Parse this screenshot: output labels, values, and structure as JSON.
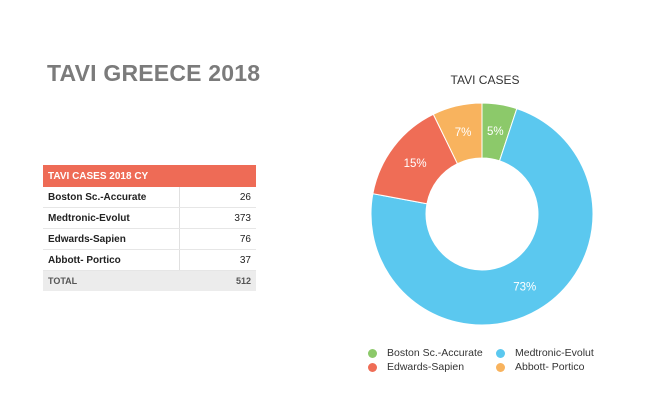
{
  "page": {
    "title": "TAVI GREECE 2018"
  },
  "table": {
    "header": "TAVI CASES 2018 CY",
    "rows": [
      {
        "label": "Boston Sc.-Accurate",
        "value": "26"
      },
      {
        "label": "Medtronic-Evolut",
        "value": "373"
      },
      {
        "label": "Edwards-Sapien",
        "value": "76"
      },
      {
        "label": "Abbott- Portico",
        "value": "37"
      }
    ],
    "total": {
      "label": "TOTAL",
      "value": "512"
    }
  },
  "chart_data": {
    "type": "pie",
    "title": "TAVI CASES",
    "categories": [
      "Boston Sc.-Accurate",
      "Medtronic-Evolut",
      "Edwards-Sapien",
      "Abbott- Portico"
    ],
    "values": [
      26,
      373,
      76,
      37
    ],
    "data_labels": [
      "5%",
      "73%",
      "15%",
      "7%"
    ],
    "colors": [
      "#8cc96a",
      "#5bc8ef",
      "#ef6d56",
      "#f8b35e"
    ],
    "legend": {
      "placement": "bottom",
      "entries": [
        {
          "label": "Boston Sc.-Accurate",
          "color": "#8cc96a"
        },
        {
          "label": "Medtronic-Evolut",
          "color": "#5bc8ef"
        },
        {
          "label": "Edwards-Sapien",
          "color": "#ef6d56"
        },
        {
          "label": "Abbott- Portico",
          "color": "#f8b35e"
        }
      ]
    }
  }
}
